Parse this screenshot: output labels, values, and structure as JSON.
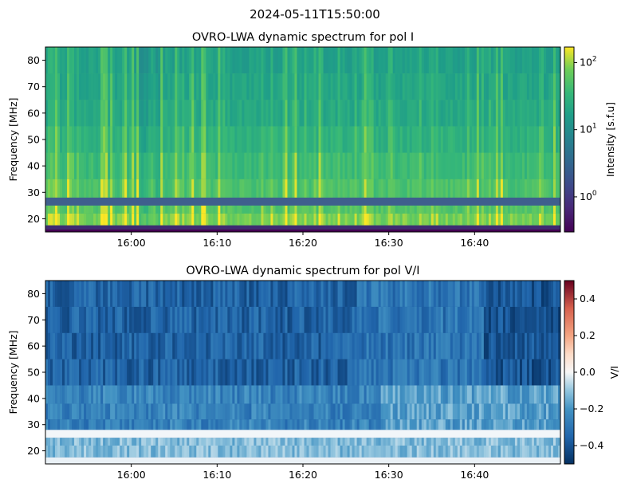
{
  "figure": {
    "suptitle": "2024-05-11T15:50:00"
  },
  "chart_data": [
    {
      "type": "heatmap",
      "title": "OVRO-LWA dynamic spectrum for pol I",
      "xlabel": "",
      "ylabel": "Frequency [MHz]",
      "x_ticks": [
        "16:00",
        "16:10",
        "16:20",
        "16:30",
        "16:40"
      ],
      "y_ticks": [
        20,
        30,
        40,
        50,
        60,
        70,
        80
      ],
      "xlim": [
        "15:50:00",
        "16:50:00"
      ],
      "ylim": [
        15,
        85
      ],
      "colorbar": {
        "label": "Intensity [s.f.u]",
        "scale": "log",
        "ticks": [
          "10^0",
          "10^1",
          "10^2"
        ],
        "range": [
          0.3,
          170
        ],
        "colormap": "viridis"
      },
      "features": {
        "gap_bands_MHz": [
          [
            16,
            17.5
          ],
          [
            25,
            28
          ]
        ],
        "bright_band_MHz": [
          17.5,
          24
        ],
        "dominant_level_sfu": "10-30"
      }
    },
    {
      "type": "heatmap",
      "title": "OVRO-LWA dynamic spectrum for pol V/I",
      "xlabel": "",
      "ylabel": "Frequency [MHz]",
      "x_ticks": [
        "16:00",
        "16:10",
        "16:20",
        "16:30",
        "16:40"
      ],
      "y_ticks": [
        20,
        30,
        40,
        50,
        60,
        70,
        80
      ],
      "xlim": [
        "15:50:00",
        "16:50:00"
      ],
      "ylim": [
        15,
        85
      ],
      "colorbar": {
        "label": "V/I",
        "scale": "linear",
        "ticks": [
          "0.4",
          "0.2",
          "0.0",
          "−0.2",
          "−0.4"
        ],
        "range": [
          -0.5,
          0.5
        ],
        "colormap": "RdBu_r"
      },
      "features": {
        "dominant_value": -0.4,
        "gap_bands_MHz": [
          [
            25,
            28
          ]
        ]
      }
    }
  ]
}
